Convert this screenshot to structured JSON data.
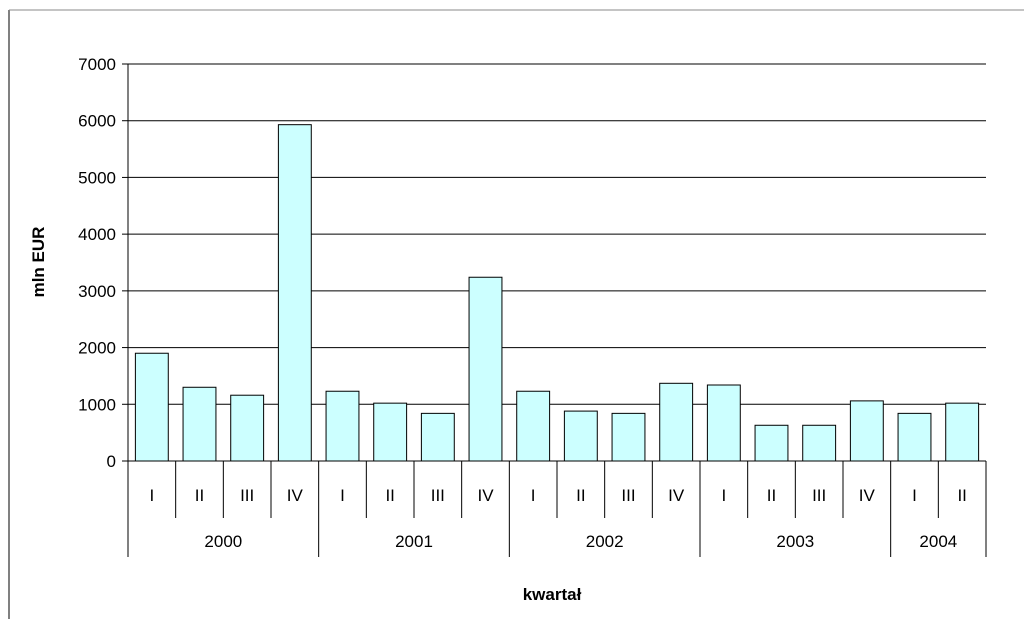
{
  "chart_data": {
    "type": "bar",
    "title": "",
    "xlabel": "kwartał",
    "ylabel": "mln EUR",
    "ylim": [
      0,
      7000
    ],
    "yticks": [
      "0",
      "1000",
      "2000",
      "3000",
      "4000",
      "5000",
      "6000",
      "7000"
    ],
    "grid": true,
    "legend": "none",
    "bar_color": "#ccffff",
    "groups": [
      {
        "year": "2000",
        "quarters": [
          "I",
          "II",
          "III",
          "IV"
        ]
      },
      {
        "year": "2001",
        "quarters": [
          "I",
          "II",
          "III",
          "IV"
        ]
      },
      {
        "year": "2002",
        "quarters": [
          "I",
          "II",
          "III",
          "IV"
        ]
      },
      {
        "year": "2003",
        "quarters": [
          "I",
          "II",
          "III",
          "IV"
        ]
      },
      {
        "year": "2004",
        "quarters": [
          "I",
          "II"
        ]
      }
    ],
    "values": [
      1900,
      1300,
      1160,
      5930,
      1230,
      1020,
      840,
      3240,
      1230,
      880,
      840,
      1370,
      1340,
      630,
      630,
      1060,
      840,
      1020
    ]
  }
}
